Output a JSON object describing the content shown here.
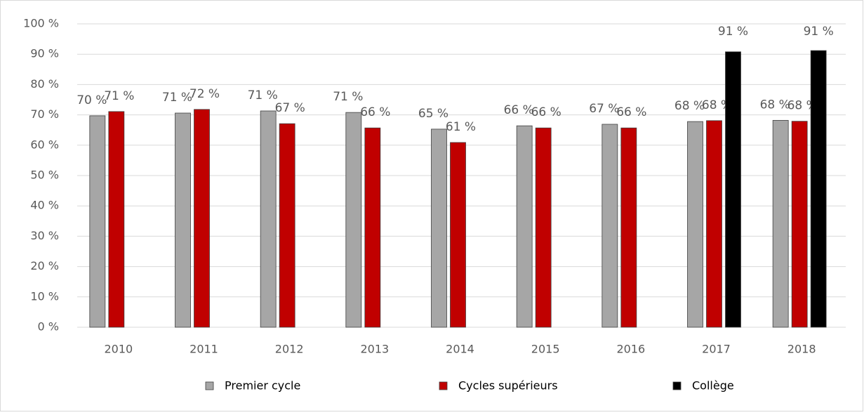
{
  "chart_data": {
    "type": "bar",
    "categories": [
      "2010",
      "2011",
      "2012",
      "2013",
      "2014",
      "2015",
      "2016",
      "2017",
      "2018"
    ],
    "series": [
      {
        "name": "Premier cycle",
        "color": "#a6a6a6",
        "values": [
          69.7,
          70.6,
          71.3,
          70.8,
          65.3,
          66.4,
          66.9,
          67.8,
          68.2
        ],
        "value_labels": [
          "70 %",
          "71 %",
          "71 %",
          "71 %",
          "65 %",
          "66 %",
          "67 %",
          "68 %",
          "68 %"
        ]
      },
      {
        "name": "Cycles supérieurs",
        "color": "#c00000",
        "values": [
          71.1,
          71.8,
          67.1,
          65.7,
          60.9,
          65.7,
          65.7,
          68.1,
          67.9
        ],
        "value_labels": [
          "71 %",
          "72 %",
          "67 %",
          "66 %",
          "61 %",
          "66 %",
          "66 %",
          "68 %",
          "68 %"
        ]
      },
      {
        "name": "Collège",
        "color": "#000000",
        "values": [
          null,
          null,
          null,
          null,
          null,
          null,
          null,
          90.8,
          91.2
        ],
        "value_labels": [
          null,
          null,
          null,
          null,
          null,
          null,
          null,
          "91 %",
          "91 %"
        ]
      }
    ],
    "ylim": [
      0,
      100
    ],
    "yticks": [
      {
        "value": 0,
        "label": "0 %"
      },
      {
        "value": 10,
        "label": "10 %"
      },
      {
        "value": 20,
        "label": "20 %"
      },
      {
        "value": 30,
        "label": "30 %"
      },
      {
        "value": 40,
        "label": "40 %"
      },
      {
        "value": 50,
        "label": "50 %"
      },
      {
        "value": 60,
        "label": "60 %"
      },
      {
        "value": 70,
        "label": "70 %"
      },
      {
        "value": 80,
        "label": "80 %"
      },
      {
        "value": 90,
        "label": "90 %"
      },
      {
        "value": 100,
        "label": "100 %"
      }
    ],
    "grid": true,
    "legend": "bottom"
  }
}
